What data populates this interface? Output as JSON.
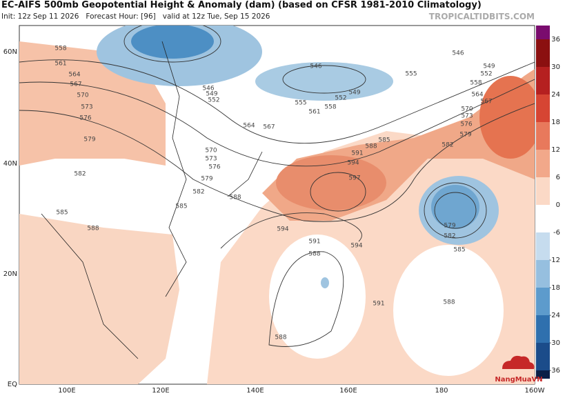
{
  "header": {
    "title": "EC-AIFS 500mb Geopotential Height & Anomaly (dam) (based on CFSR 1981-2010 Climatology)",
    "subtitle": "Init: 12z Sep 11 2026   Forecast Hour: [96]   valid at 12z Tue, Sep 15 2026",
    "watermark": "TROPICALTIDBITS.COM"
  },
  "axes": {
    "lat": [
      "60N",
      "40N",
      "20N",
      "EQ"
    ],
    "lon": [
      "100E",
      "120E",
      "140E",
      "160E",
      "180",
      "160W"
    ]
  },
  "colorbar": {
    "ticks": [
      36,
      30,
      24,
      18,
      12,
      6,
      0,
      -6,
      -12,
      -18,
      -24,
      -30,
      -36
    ]
  },
  "contours": [
    "558",
    "561",
    "564",
    "567",
    "570",
    "573",
    "576",
    "579",
    "582",
    "585",
    "588",
    "546",
    "549",
    "552",
    "555",
    "561",
    "564",
    "567",
    "570",
    "573",
    "576",
    "579",
    "582",
    "585",
    "588",
    "558",
    "546",
    "549",
    "552",
    "555",
    "558",
    "564",
    "567",
    "570",
    "573",
    "576",
    "579",
    "582",
    "585",
    "588",
    "591",
    "594",
    "597",
    "594",
    "594",
    "591",
    "588",
    "588",
    "579",
    "582",
    "585",
    "588",
    "591",
    "546",
    "549",
    "552"
  ],
  "logo": "NangMuaVN"
}
